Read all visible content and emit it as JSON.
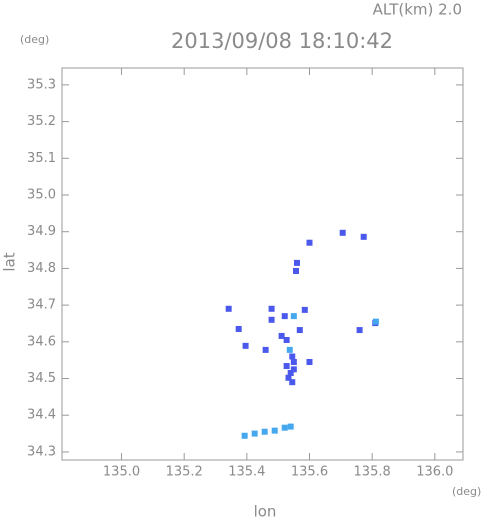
{
  "chart_data": {
    "type": "scatter",
    "title": "2013/09/08 18:10:42",
    "altitude_label": "ALT(km) 2.0",
    "y_unit": "(deg)",
    "x_unit": "(deg)",
    "x_label": "lon",
    "y_label": "lat",
    "xlim": [
      134.81,
      136.09
    ],
    "ylim": [
      34.278,
      35.346
    ],
    "xticks": [
      {
        "value": 135,
        "label": "135.0"
      },
      135.2,
      135.4,
      135.6,
      135.8,
      {
        "value": 136,
        "label": "136.0"
      }
    ],
    "yticks": [
      34.3,
      34.4,
      34.5,
      34.6,
      34.7,
      34.8,
      34.9,
      {
        "value": 35,
        "label": "35.0"
      },
      35.1,
      35.2,
      35.3
    ],
    "series": [
      {
        "color": "#4a58ec",
        "x": [
          135.342,
          135.374,
          135.396,
          135.479,
          135.479,
          135.511,
          135.46,
          135.56,
          135.557,
          135.6,
          135.527,
          135.533,
          135.54,
          135.545,
          135.55,
          135.527,
          135.569,
          135.585,
          135.6,
          135.706,
          135.773,
          135.76,
          135.81,
          135.521,
          135.545,
          135.55
        ],
        "y": [
          34.69,
          34.635,
          34.589,
          34.69,
          34.66,
          34.616,
          34.578,
          34.815,
          34.793,
          34.87,
          34.534,
          34.502,
          34.515,
          34.56,
          34.545,
          34.605,
          34.632,
          34.687,
          34.545,
          34.897,
          34.886,
          34.632,
          34.651,
          34.67,
          34.49,
          34.525
        ]
      },
      {
        "color": "#45a8ee",
        "x": [
          135.537,
          135.55,
          135.393,
          135.425,
          135.457,
          135.489,
          135.521,
          135.54,
          135.812
        ],
        "y": [
          34.578,
          34.67,
          34.344,
          34.35,
          34.355,
          34.358,
          34.366,
          34.369,
          34.655
        ]
      }
    ]
  }
}
